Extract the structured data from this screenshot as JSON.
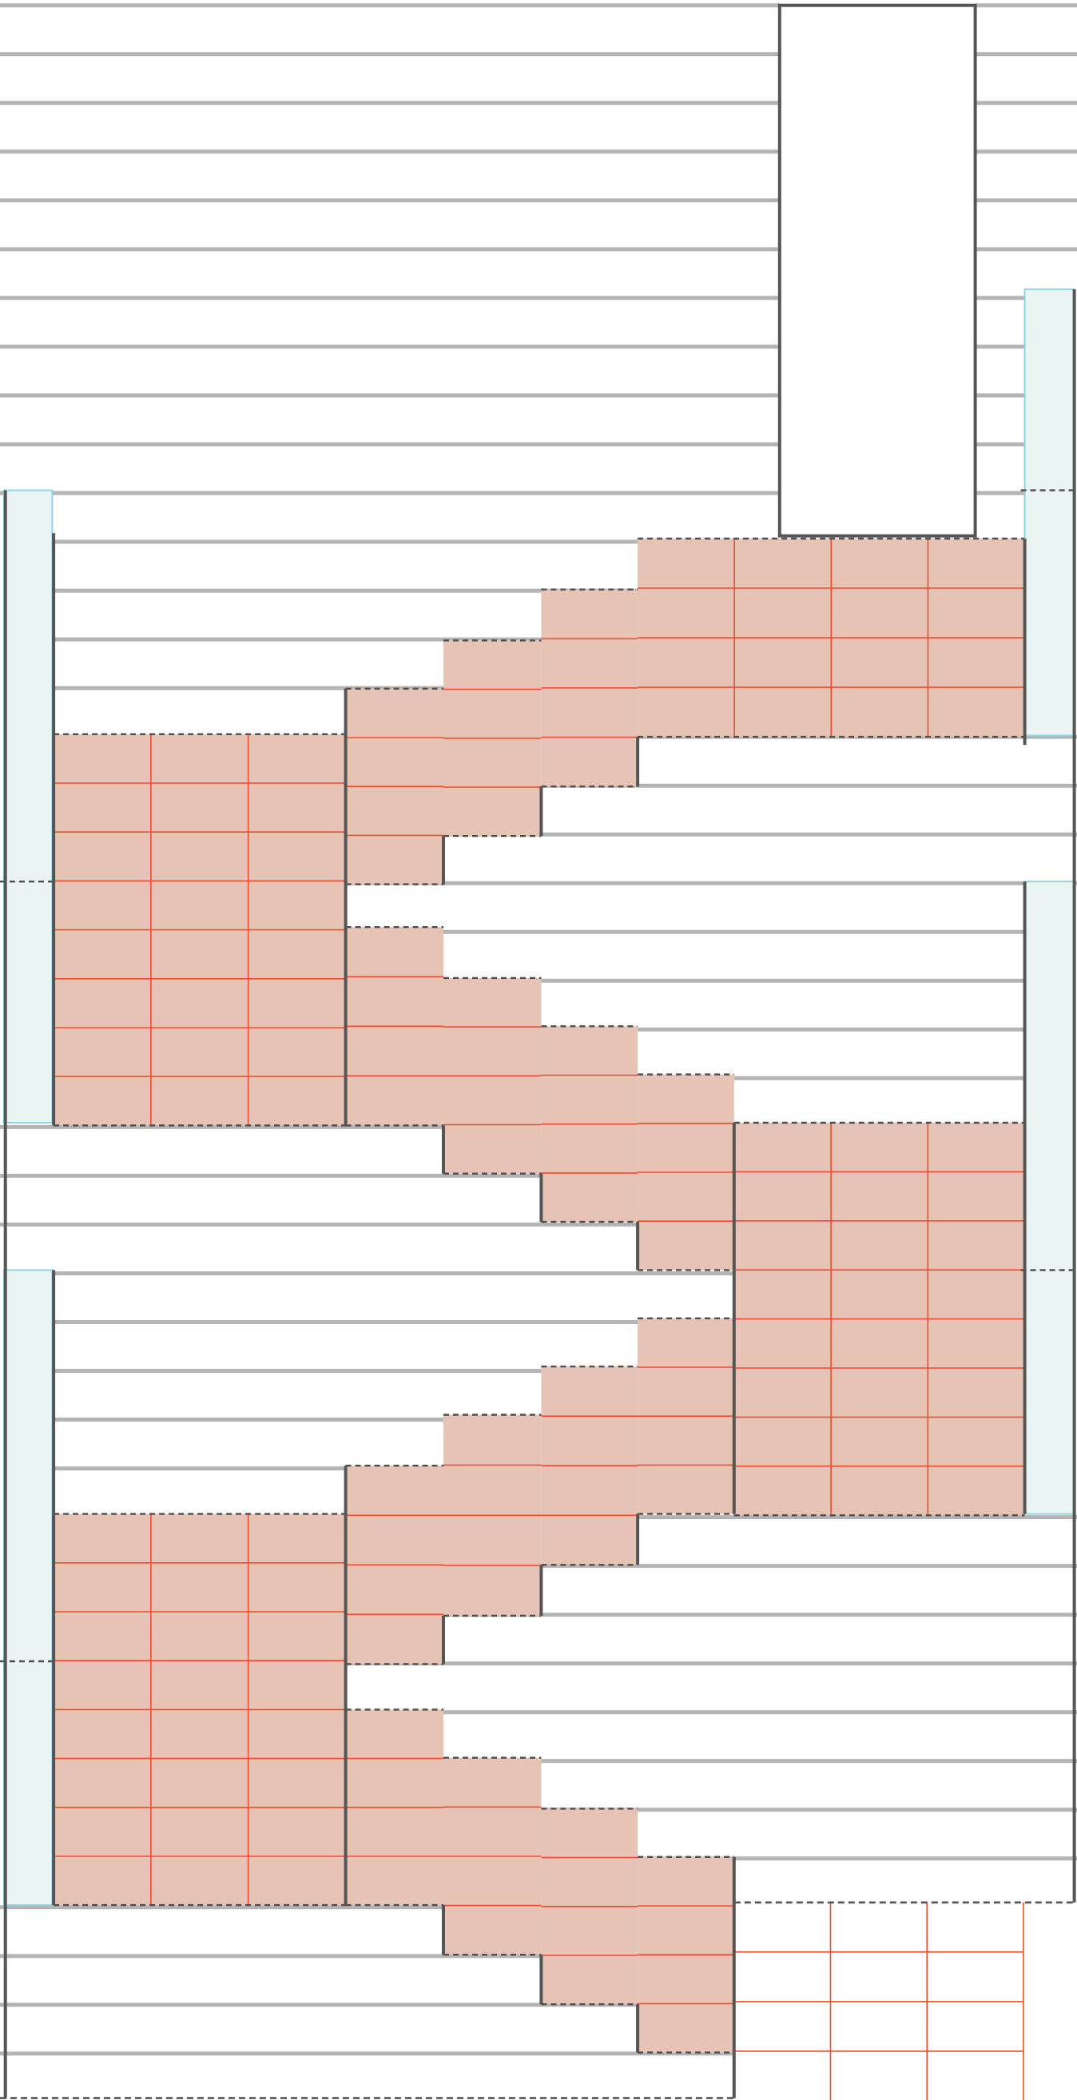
{
  "diagram": {
    "kind": "stair-plan",
    "flight_count": 4,
    "colors": {
      "background": "#ffffff",
      "ruled_line": "#b4b4b4",
      "wall": "#555555",
      "step_fill": "#e7c3b6",
      "step_grid": "#ef4c2f",
      "handrail_fill": "#eaf4f2",
      "handrail_edge": "#8fd4e4",
      "dashed_edge": "#4d4d4d"
    }
  }
}
